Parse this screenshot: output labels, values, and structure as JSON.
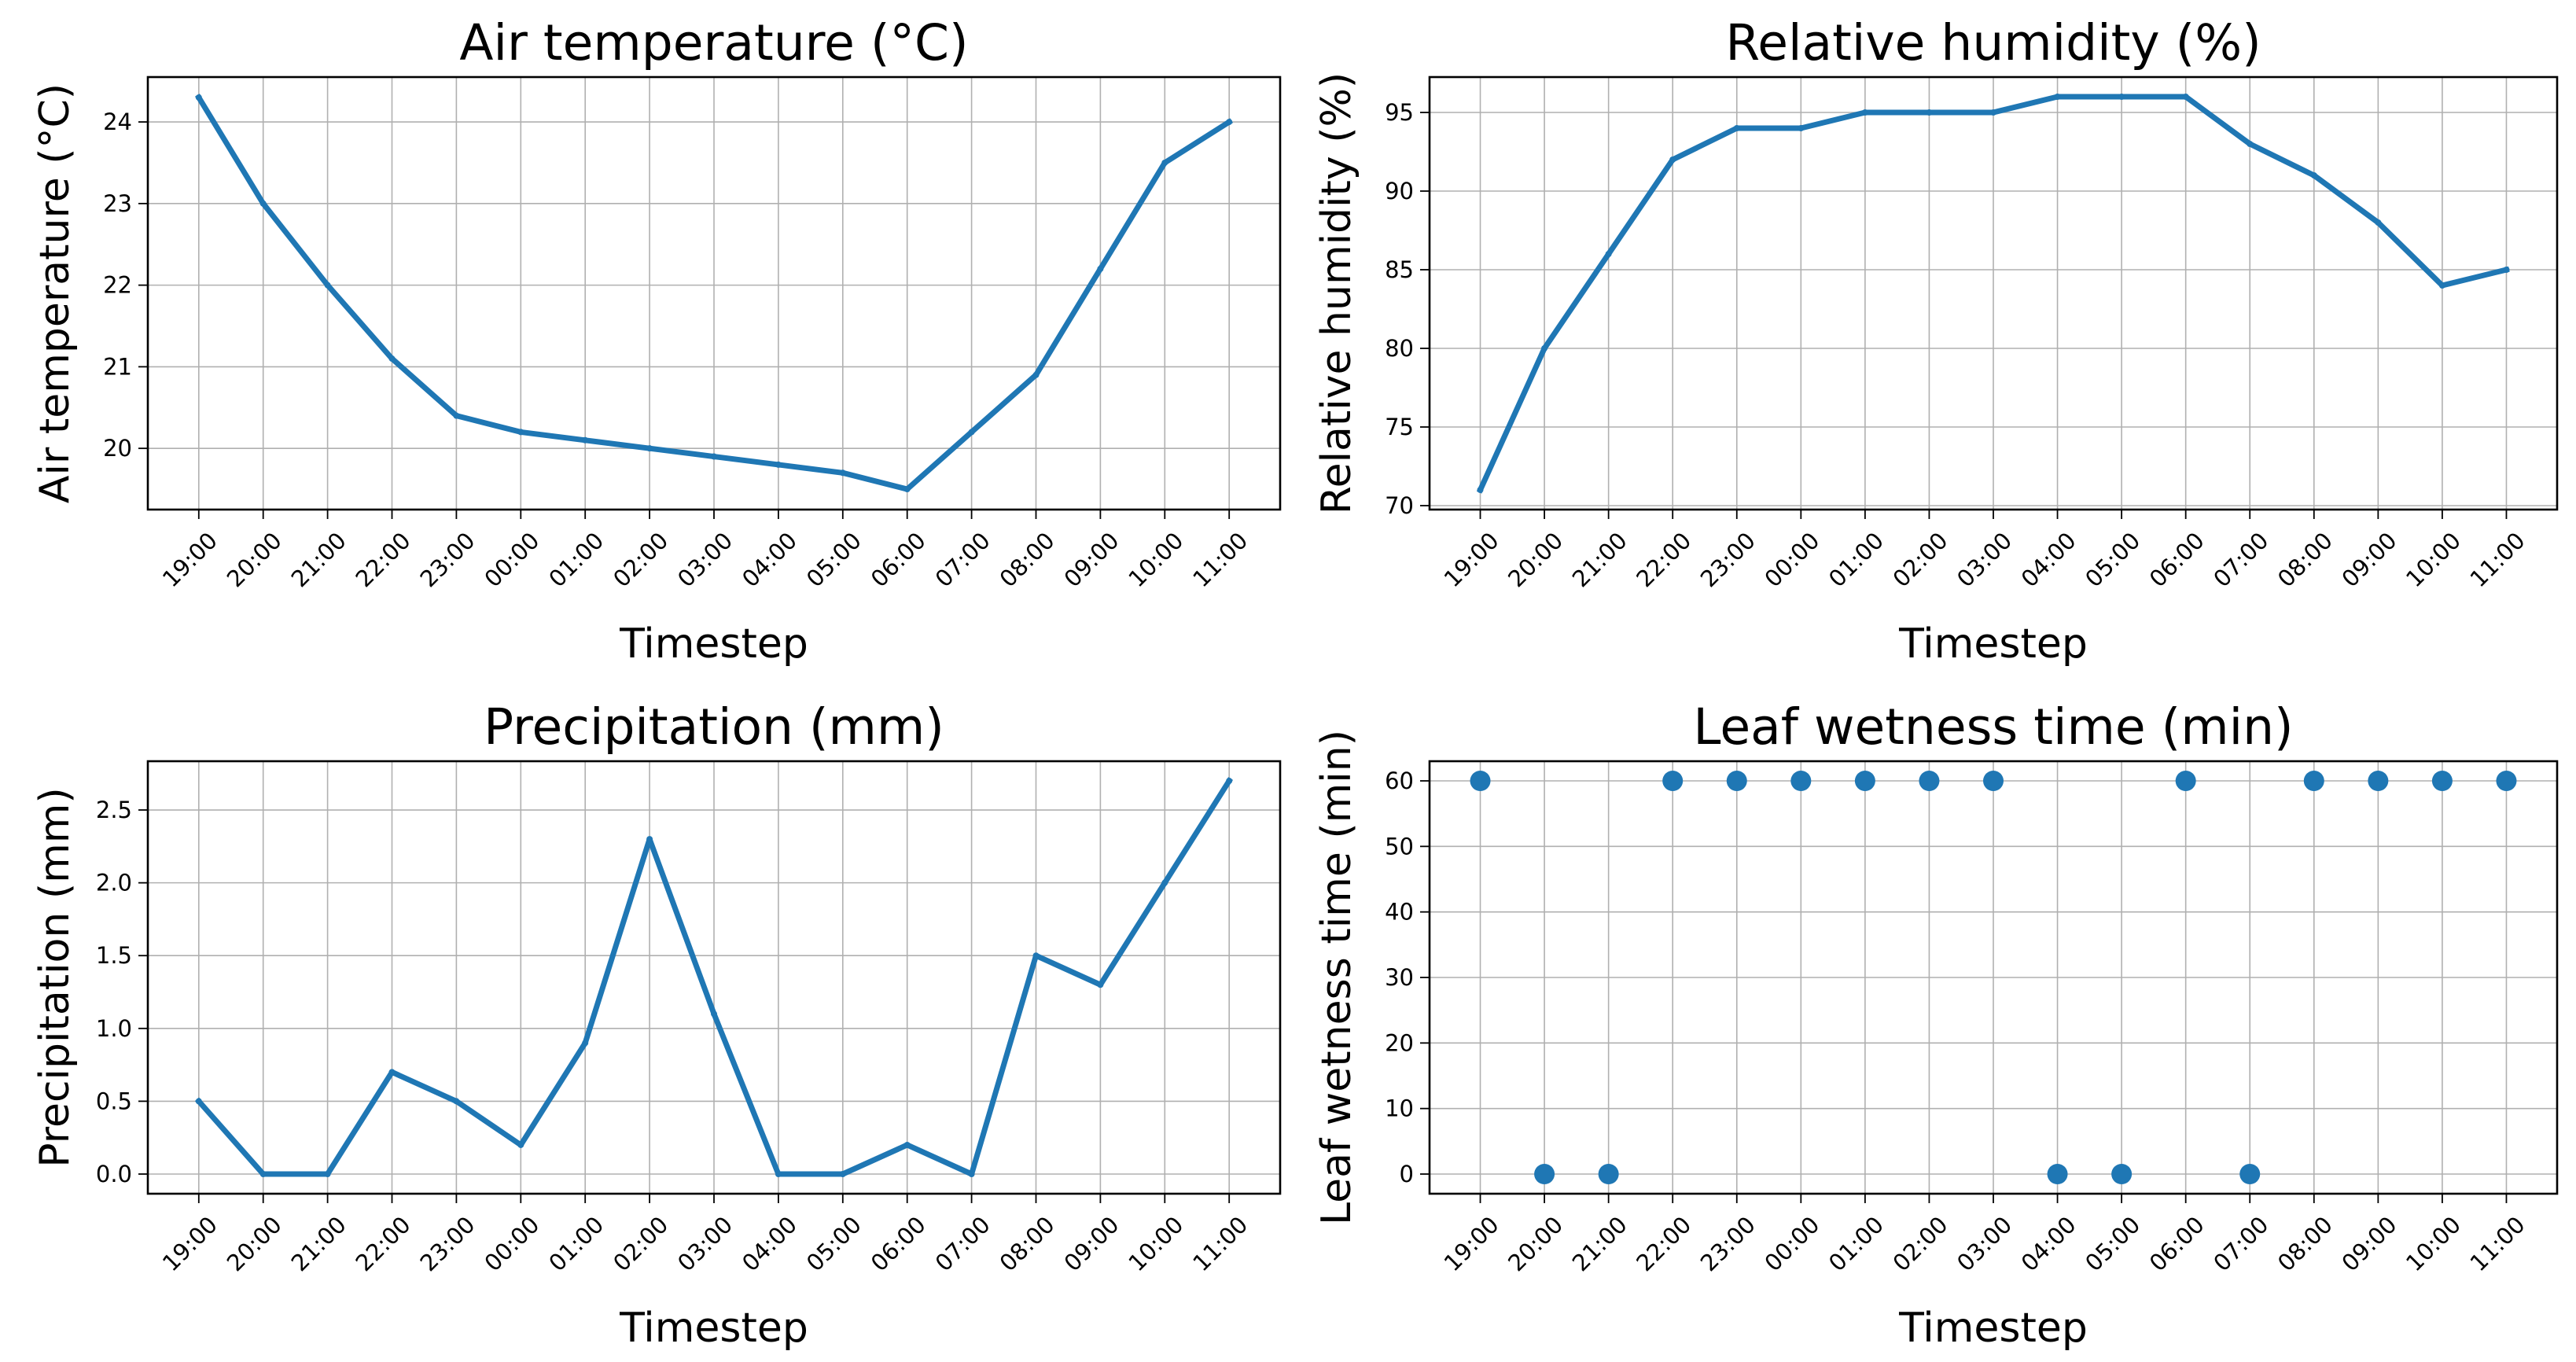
{
  "colors": {
    "series": "#1f77b4",
    "grid": "#b0b0b0",
    "axis": "#000000"
  },
  "chart_data": [
    {
      "type": "line",
      "title": "Air temperature (°C)",
      "xlabel": "Timestep",
      "ylabel": "Air temperature (°C)",
      "categories": [
        "19:00",
        "20:00",
        "21:00",
        "22:00",
        "23:00",
        "00:00",
        "01:00",
        "02:00",
        "03:00",
        "04:00",
        "05:00",
        "06:00",
        "07:00",
        "08:00",
        "09:00",
        "10:00",
        "11:00"
      ],
      "values": [
        24.3,
        23.0,
        22.0,
        21.1,
        20.4,
        20.2,
        20.1,
        20.0,
        19.9,
        19.8,
        19.7,
        19.5,
        20.2,
        20.9,
        22.2,
        23.5,
        24.0
      ],
      "ylim": [
        19.25,
        24.55
      ],
      "yticks": [
        20,
        21,
        22,
        23,
        24
      ],
      "ytick_labels": [
        "20",
        "21",
        "22",
        "23",
        "24"
      ],
      "grid": true
    },
    {
      "type": "line",
      "title": "Relative humidity (%)",
      "xlabel": "Timestep",
      "ylabel": "Relative humidity (%)",
      "categories": [
        "19:00",
        "20:00",
        "21:00",
        "22:00",
        "23:00",
        "00:00",
        "01:00",
        "02:00",
        "03:00",
        "04:00",
        "05:00",
        "06:00",
        "07:00",
        "08:00",
        "09:00",
        "10:00",
        "11:00"
      ],
      "values": [
        71,
        80,
        86,
        92,
        94,
        94,
        95,
        95,
        95,
        96,
        96,
        96,
        93,
        91,
        88,
        84,
        85
      ],
      "ylim": [
        69.75,
        97.25
      ],
      "yticks": [
        70,
        75,
        80,
        85,
        90,
        95
      ],
      "ytick_labels": [
        "70",
        "75",
        "80",
        "85",
        "90",
        "95"
      ],
      "grid": true
    },
    {
      "type": "line",
      "title": "Precipitation (mm)",
      "xlabel": "Timestep",
      "ylabel": "Precipitation (mm)",
      "categories": [
        "19:00",
        "20:00",
        "21:00",
        "22:00",
        "23:00",
        "00:00",
        "01:00",
        "02:00",
        "03:00",
        "04:00",
        "05:00",
        "06:00",
        "07:00",
        "08:00",
        "09:00",
        "10:00",
        "11:00"
      ],
      "values": [
        0.5,
        0.0,
        0.0,
        0.7,
        0.5,
        0.2,
        0.9,
        2.3,
        1.1,
        0.0,
        0.0,
        0.2,
        0.0,
        1.5,
        1.3,
        2.0,
        2.7
      ],
      "ylim": [
        -0.135,
        2.835
      ],
      "yticks": [
        0.0,
        0.5,
        1.0,
        1.5,
        2.0,
        2.5
      ],
      "ytick_labels": [
        "0.0",
        "0.5",
        "1.0",
        "1.5",
        "2.0",
        "2.5"
      ],
      "grid": true
    },
    {
      "type": "scatter",
      "title": "Leaf wetness time (min)",
      "xlabel": "Timestep",
      "ylabel": "Leaf wetness time (min)",
      "categories": [
        "19:00",
        "20:00",
        "21:00",
        "22:00",
        "23:00",
        "00:00",
        "01:00",
        "02:00",
        "03:00",
        "04:00",
        "05:00",
        "06:00",
        "07:00",
        "08:00",
        "09:00",
        "10:00",
        "11:00"
      ],
      "values": [
        60,
        0,
        0,
        60,
        60,
        60,
        60,
        60,
        60,
        0,
        0,
        60,
        0,
        60,
        60,
        60,
        60
      ],
      "ylim": [
        -3,
        63
      ],
      "yticks": [
        0,
        10,
        20,
        30,
        40,
        50,
        60
      ],
      "ytick_labels": [
        "0",
        "10",
        "20",
        "30",
        "40",
        "50",
        "60"
      ],
      "grid": true
    }
  ]
}
